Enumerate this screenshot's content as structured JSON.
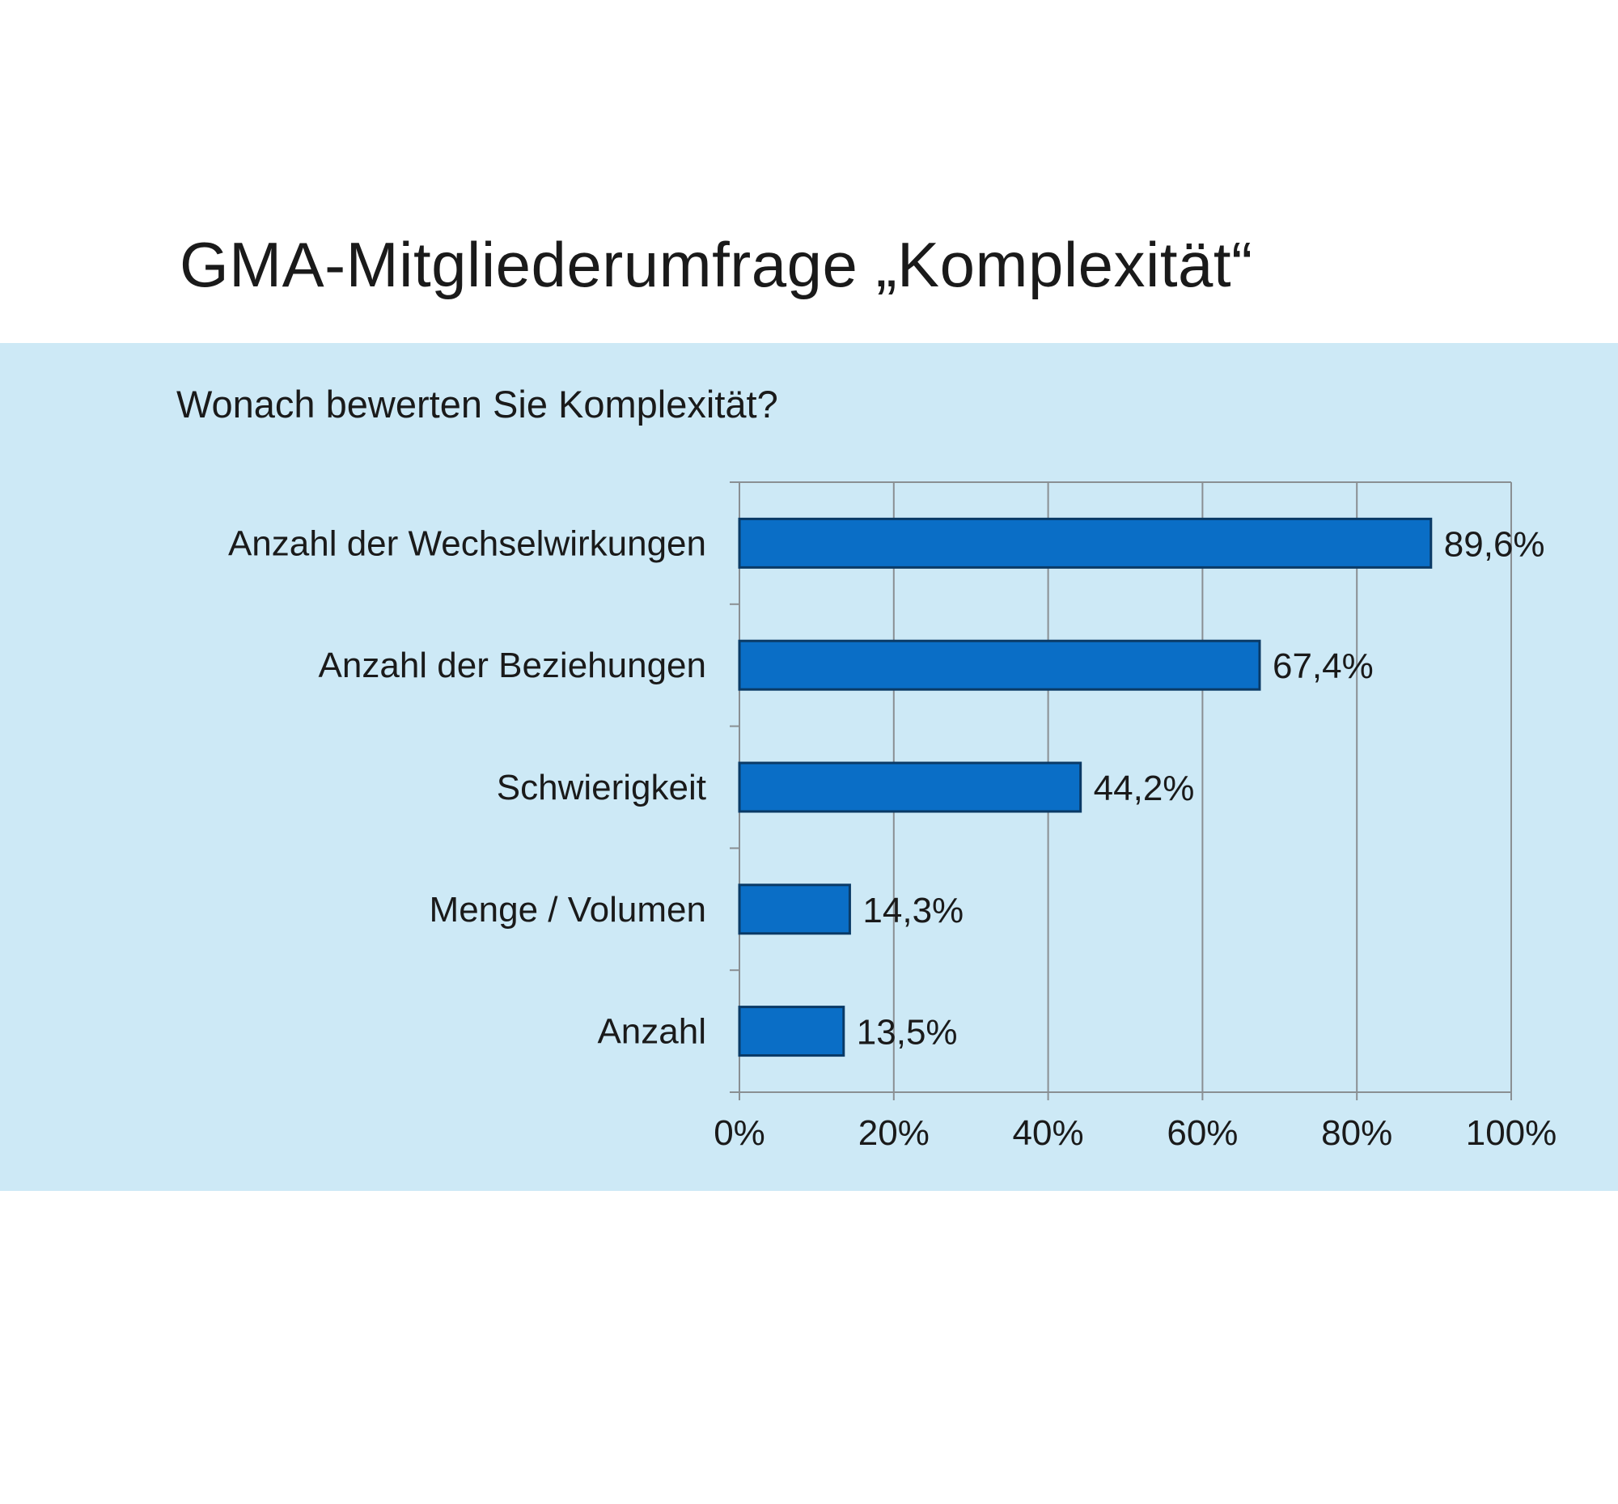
{
  "header": {
    "title": "GMA-Mitgliederumfrage „Komplexität“"
  },
  "colors": {
    "panel_background": "#cde9f6",
    "bar_fill": "#0a6ec6",
    "bar_stroke": "#0a3a66",
    "grid": "#8a8f93"
  },
  "chart_data": {
    "type": "bar",
    "orientation": "horizontal",
    "title": "Wonach bewerten Sie Komplexität?",
    "categories": [
      "Anzahl der Wechselwirkungen",
      "Anzahl der Beziehungen",
      "Schwierigkeit",
      "Menge / Volumen",
      "Anzahl"
    ],
    "values": [
      89.6,
      67.4,
      44.2,
      14.3,
      13.5
    ],
    "data_labels": [
      "89,6%",
      "67,4%",
      "44,2%",
      "14,3%",
      "13,5%"
    ],
    "xlim": [
      0,
      100
    ],
    "x_ticks": [
      0,
      20,
      40,
      60,
      80,
      100
    ],
    "x_tick_labels": [
      "0%",
      "20%",
      "40%",
      "60%",
      "80%",
      "100%"
    ],
    "grid": true,
    "legend": "none"
  }
}
